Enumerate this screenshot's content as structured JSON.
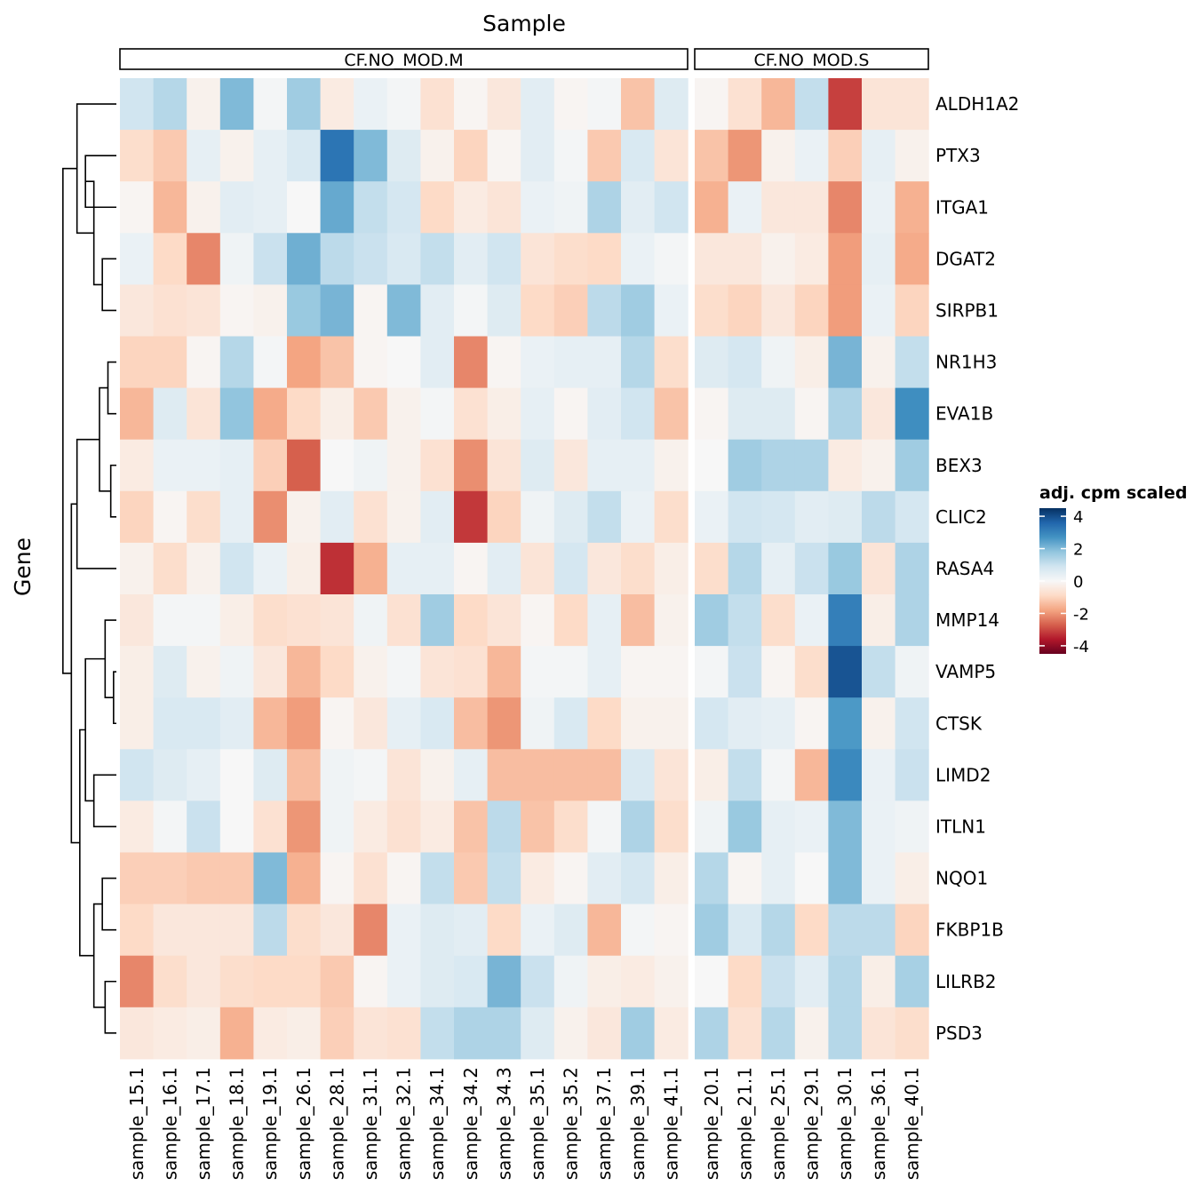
{
  "chart_data": {
    "type": "heatmap",
    "title": "",
    "xlabel": "Sample",
    "ylabel": "Gene",
    "legend": {
      "title": "adj. cpm scaled",
      "position": "right",
      "range": [
        -4.5,
        4.5
      ],
      "ticks": [
        4,
        2,
        0,
        -2,
        -4
      ],
      "tick_labels": [
        "4",
        "2",
        "0",
        "-2",
        "-4"
      ]
    },
    "colors": {
      "stops": [
        "#67001f",
        "#b2182b",
        "#d6604d",
        "#f4a582",
        "#fddbc7",
        "#f7f7f7",
        "#d1e5f0",
        "#92c5de",
        "#4393c3",
        "#2166ac",
        "#053061"
      ],
      "stop_values": [
        -4.5,
        -3.6,
        -2.7,
        -1.8,
        -0.9,
        0,
        0.9,
        1.8,
        2.7,
        3.6,
        4.5
      ]
    },
    "panels": [
      {
        "label": "CF.NO_MOD.M",
        "samples": [
          "sample_15.1",
          "sample_16.1",
          "sample_17.1",
          "sample_18.1",
          "sample_19.1",
          "sample_26.1",
          "sample_28.1",
          "sample_31.1",
          "sample_32.1",
          "sample_34.1",
          "sample_34.2",
          "sample_34.3",
          "sample_35.1",
          "sample_35.2",
          "sample_37.1",
          "sample_39.1",
          "sample_41.1"
        ]
      },
      {
        "label": "CF.NO_MOD.S",
        "samples": [
          "sample_20.1",
          "sample_21.1",
          "sample_25.1",
          "sample_29.1",
          "sample_30.1",
          "sample_36.1",
          "sample_40.1"
        ]
      }
    ],
    "genes": [
      "ALDH1A2",
      "PTX3",
      "ITGA1",
      "DGAT2",
      "SIRPB1",
      "NR1H3",
      "EVA1B",
      "BEX3",
      "CLIC2",
      "RASA4",
      "MMP14",
      "VAMP5",
      "CTSK",
      "LIMD2",
      "ITLN1",
      "NQO1",
      "FKBP1B",
      "LILRB2",
      "PSD3"
    ],
    "values": [
      [
        0.9,
        1.3,
        -0.2,
        2.0,
        0.1,
        1.6,
        -0.4,
        0.3,
        0.1,
        -0.7,
        -0.1,
        -0.5,
        0.5,
        -0.1,
        0.1,
        -1.3,
        0.6,
        -0.1,
        -0.7,
        -1.5,
        1.1,
        -3.1,
        -0.6,
        -0.6
      ],
      [
        -0.8,
        -1.2,
        0.4,
        -0.2,
        0.4,
        0.7,
        3.3,
        2.0,
        0.6,
        -0.2,
        -1.0,
        -0.1,
        0.5,
        0.1,
        -1.2,
        0.7,
        -0.6,
        -1.3,
        -2.0,
        -0.2,
        0.3,
        -1.1,
        0.4,
        -0.2
      ],
      [
        -0.1,
        -1.5,
        -0.2,
        0.5,
        0.4,
        0.0,
        2.3,
        1.1,
        0.8,
        -0.9,
        -0.4,
        -0.6,
        0.3,
        0.2,
        1.4,
        0.5,
        0.9,
        -1.6,
        0.3,
        -0.5,
        -0.5,
        -2.2,
        0.3,
        -1.6
      ],
      [
        0.3,
        -0.9,
        -2.2,
        0.2,
        1.0,
        2.2,
        1.2,
        1.0,
        0.7,
        1.1,
        0.5,
        0.9,
        -0.6,
        -0.8,
        -0.9,
        0.3,
        0.1,
        -0.5,
        -0.5,
        -0.2,
        -0.4,
        -1.9,
        0.4,
        -1.7
      ],
      [
        -0.5,
        -0.7,
        -0.6,
        -0.1,
        -0.2,
        1.7,
        2.1,
        -0.1,
        2.0,
        0.5,
        0.1,
        0.6,
        -0.9,
        -1.1,
        1.2,
        1.6,
        0.3,
        -0.8,
        -1.0,
        -0.5,
        -1.0,
        -1.9,
        0.3,
        -1.0
      ],
      [
        -1.0,
        -1.0,
        -0.1,
        1.3,
        0.1,
        -1.8,
        -1.3,
        -0.1,
        0.0,
        0.5,
        -2.2,
        -0.1,
        0.3,
        0.4,
        0.4,
        1.3,
        -0.8,
        0.6,
        0.8,
        0.2,
        -0.3,
        2.1,
        -0.2,
        1.1
      ],
      [
        -1.5,
        0.6,
        -0.6,
        1.8,
        -1.7,
        -0.9,
        -0.3,
        -1.2,
        -0.2,
        0.1,
        -0.7,
        -0.3,
        0.4,
        -0.1,
        0.5,
        0.9,
        -1.3,
        -0.1,
        0.6,
        0.6,
        -0.1,
        1.4,
        -0.5,
        2.8
      ],
      [
        -0.4,
        0.3,
        0.3,
        0.4,
        -1.1,
        -2.7,
        0.0,
        0.2,
        -0.2,
        -0.7,
        -2.1,
        -0.6,
        0.6,
        -0.5,
        0.4,
        0.4,
        -0.2,
        0.0,
        1.6,
        1.4,
        1.4,
        -0.4,
        -0.2,
        1.6
      ],
      [
        -1.0,
        -0.1,
        -0.8,
        0.4,
        -2.1,
        -0.2,
        0.5,
        -0.7,
        -0.2,
        0.5,
        -3.2,
        -1.0,
        0.2,
        0.6,
        1.1,
        0.3,
        -0.8,
        0.3,
        0.9,
        0.8,
        0.5,
        0.6,
        1.2,
        0.8
      ],
      [
        -0.2,
        -0.8,
        -0.2,
        0.9,
        0.3,
        -0.3,
        -3.3,
        -1.6,
        0.4,
        0.4,
        -0.1,
        0.5,
        -0.6,
        0.8,
        -0.5,
        -0.8,
        -0.3,
        -0.8,
        1.3,
        0.4,
        1.0,
        1.7,
        -0.6,
        1.4
      ],
      [
        -0.5,
        0.1,
        0.1,
        -0.3,
        -0.8,
        -0.7,
        -0.6,
        0.2,
        -0.7,
        1.6,
        -0.9,
        -0.6,
        -0.1,
        -0.9,
        0.4,
        -1.4,
        -0.2,
        1.6,
        1.1,
        -0.8,
        0.3,
        3.1,
        -0.3,
        1.4
      ],
      [
        -0.3,
        0.6,
        -0.2,
        0.2,
        -0.5,
        -1.5,
        -0.9,
        -0.2,
        0.1,
        -0.6,
        -0.7,
        -1.5,
        0.1,
        0.1,
        0.4,
        -0.1,
        -0.1,
        0.1,
        1.0,
        -0.1,
        -0.8,
        3.9,
        1.1,
        0.2
      ],
      [
        -0.3,
        0.7,
        0.7,
        0.5,
        -1.5,
        -1.9,
        -0.1,
        -0.5,
        0.4,
        0.7,
        -1.4,
        -2.0,
        0.2,
        0.7,
        -0.9,
        -0.2,
        -0.2,
        0.8,
        0.5,
        0.4,
        -0.1,
        2.6,
        -0.2,
        0.9
      ],
      [
        0.9,
        0.6,
        0.4,
        0.0,
        0.6,
        -1.4,
        0.2,
        0.1,
        -0.6,
        -0.2,
        0.4,
        -1.4,
        -1.4,
        -1.4,
        -1.4,
        0.7,
        -0.6,
        -0.3,
        1.1,
        0.1,
        -1.5,
        2.9,
        0.3,
        1.0
      ],
      [
        -0.4,
        0.1,
        1.0,
        0.0,
        -0.7,
        -2.0,
        0.2,
        -0.4,
        -0.7,
        -0.4,
        -1.3,
        1.2,
        -1.3,
        -0.8,
        0.1,
        1.4,
        -0.8,
        0.2,
        1.7,
        0.4,
        0.3,
        2.0,
        0.3,
        0.2
      ],
      [
        -1.1,
        -1.1,
        -1.2,
        -1.2,
        2.0,
        -1.6,
        -0.1,
        -0.7,
        -0.1,
        1.1,
        -1.2,
        1.1,
        -0.4,
        -0.1,
        0.5,
        0.8,
        -0.3,
        1.3,
        -0.1,
        0.4,
        0.0,
        2.0,
        0.3,
        -0.3
      ],
      [
        -0.9,
        -0.5,
        -0.5,
        -0.5,
        1.2,
        -0.8,
        -0.5,
        -2.2,
        0.3,
        0.6,
        0.5,
        -0.9,
        0.3,
        0.6,
        -1.5,
        0.1,
        -0.1,
        1.6,
        0.7,
        1.3,
        -0.9,
        1.2,
        1.2,
        -1.0
      ],
      [
        -2.2,
        -0.8,
        -0.5,
        -0.8,
        -0.9,
        -0.9,
        -1.2,
        -0.1,
        0.3,
        0.6,
        0.7,
        2.1,
        1.0,
        0.2,
        -0.3,
        -0.4,
        -0.2,
        0.0,
        -0.9,
        1.0,
        0.5,
        1.3,
        -0.3,
        1.5
      ],
      [
        -0.5,
        -0.4,
        -0.3,
        -1.6,
        -0.4,
        -0.3,
        -1.1,
        -0.6,
        -0.7,
        1.1,
        1.4,
        1.4,
        0.6,
        -0.2,
        -0.5,
        1.6,
        -0.4,
        1.4,
        -0.7,
        1.3,
        -0.2,
        1.3,
        -0.6,
        -0.8
      ]
    ],
    "dendrogram": {
      "side": "left",
      "leaves_in_order": [
        "ALDH1A2",
        "PTX3",
        "ITGA1",
        "DGAT2",
        "SIRPB1",
        "NR1H3",
        "EVA1B",
        "BEX3",
        "CLIC2",
        "RASA4",
        "MMP14",
        "VAMP5",
        "CTSK",
        "LIMD2",
        "ITLN1",
        "NQO1",
        "FKBP1B",
        "LILRB2",
        "PSD3"
      ],
      "merges": [
        {
          "a": "PTX3",
          "b": "ITGA1",
          "height": 0.13
        },
        {
          "a": "DGAT2",
          "b": "SIRPB1",
          "height": 0.19
        },
        {
          "a": "m0",
          "b": "m1",
          "height": 0.16
        },
        {
          "a": "ALDH1A2",
          "b": "m2",
          "height": 0.1
        },
        {
          "a": "NR1H3",
          "b": "EVA1B",
          "height": 0.21
        },
        {
          "a": "BEX3",
          "b": "CLIC2",
          "height": 0.22
        },
        {
          "a": "m4",
          "b": "m5",
          "height": 0.18
        },
        {
          "a": "m6",
          "b": "RASA4",
          "height": 0.1
        },
        {
          "a": "VAMP5",
          "b": "CTSK",
          "height": 0.23
        },
        {
          "a": "m8",
          "b": "MMP14",
          "height": 0.2
        },
        {
          "a": "LIMD2",
          "b": "ITLN1",
          "height": 0.16
        },
        {
          "a": "m9",
          "b": "m10",
          "height": 0.13
        },
        {
          "a": "NQO1",
          "b": "FKBP1B",
          "height": 0.19
        },
        {
          "a": "LILRB2",
          "b": "PSD3",
          "height": 0.2
        },
        {
          "a": "m12",
          "b": "m13",
          "height": 0.16
        },
        {
          "a": "m11",
          "b": "m14",
          "height": 0.11
        },
        {
          "a": "m7",
          "b": "m15",
          "height": 0.08
        },
        {
          "a": "m3",
          "b": "m16",
          "height": 0.05
        }
      ]
    }
  }
}
